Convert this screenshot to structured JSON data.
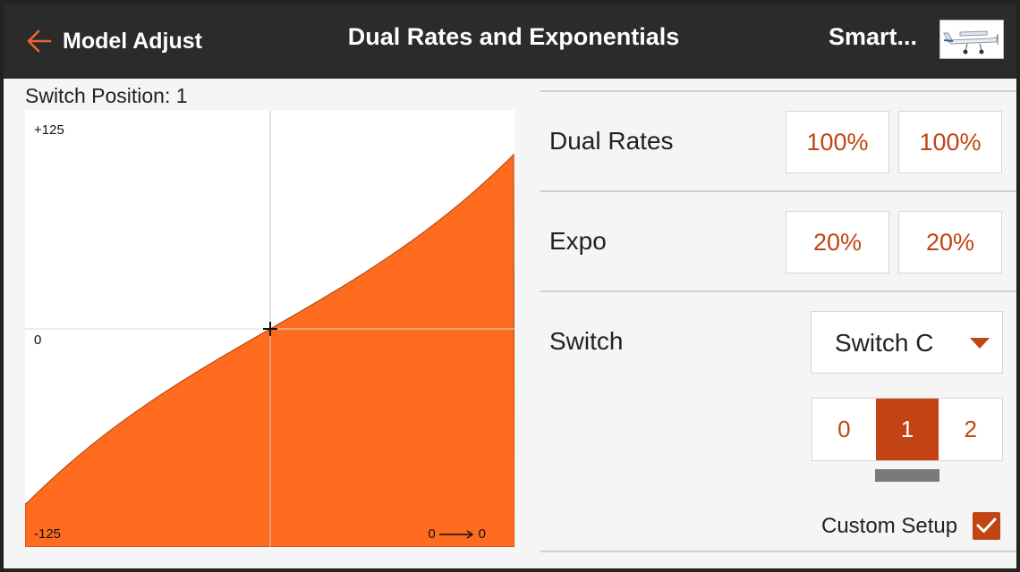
{
  "header": {
    "back_label": "Model Adjust",
    "title": "Dual Rates and Exponentials",
    "model_name": "Smart..."
  },
  "switch_position_label": "Switch Position: 1",
  "graph": {
    "label_top": "+125",
    "label_mid": "0",
    "label_bottom": "-125",
    "input_value": "0",
    "output_value": "0",
    "fill_color": "#ff6b1f",
    "curve": {
      "rate_percent": 100,
      "expo_percent": 20
    }
  },
  "dual_rates": {
    "label": "Dual Rates",
    "value_1": "100%",
    "value_2": "100%"
  },
  "expo": {
    "label": "Expo",
    "value_1": "20%",
    "value_2": "20%"
  },
  "switch": {
    "label": "Switch",
    "selected": "Switch C",
    "positions": [
      "0",
      "1",
      "2"
    ],
    "active_position": 1
  },
  "custom_setup": {
    "label": "Custom Setup",
    "checked": true
  },
  "colors": {
    "accent": "#c24414",
    "header_bg": "#2b2b2b",
    "graph_fill": "#ff6b1f"
  }
}
